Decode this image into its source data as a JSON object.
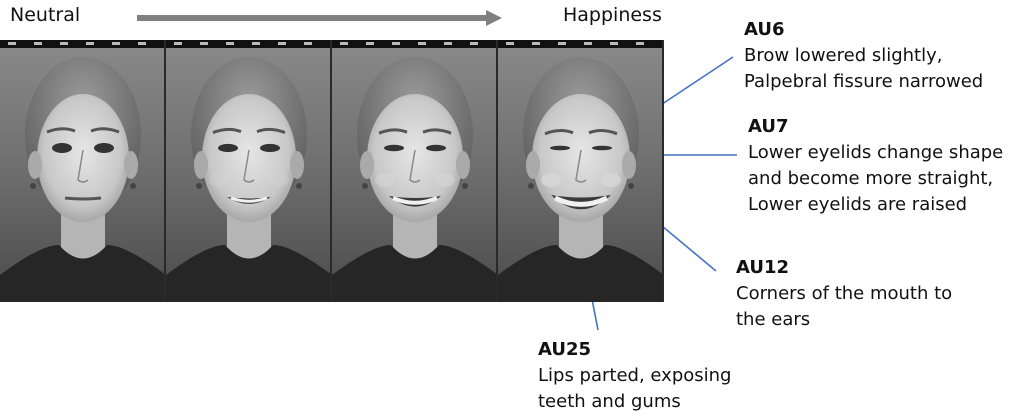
{
  "header": {
    "start_label": "Neutral",
    "end_label": "Happiness"
  },
  "colors": {
    "arrow": "#808080",
    "callout_line": "#4472C4",
    "photo_bg": "#6f6f6f"
  },
  "frames": [
    {
      "expression_level": 0
    },
    {
      "expression_level": 1
    },
    {
      "expression_level": 2
    },
    {
      "expression_level": 3
    }
  ],
  "action_units": [
    {
      "code": "AU6",
      "lines": [
        "Brow lowered slightly,",
        "Palpebral fissure narrowed"
      ]
    },
    {
      "code": "AU7",
      "lines": [
        "Lower eyelids change shape",
        "and become more straight,",
        "Lower eyelids are raised"
      ]
    },
    {
      "code": "AU12",
      "lines": [
        "Corners of the mouth to",
        "the ears"
      ]
    },
    {
      "code": "AU25",
      "lines": [
        "Lips parted, exposing",
        "teeth and gums"
      ]
    }
  ]
}
